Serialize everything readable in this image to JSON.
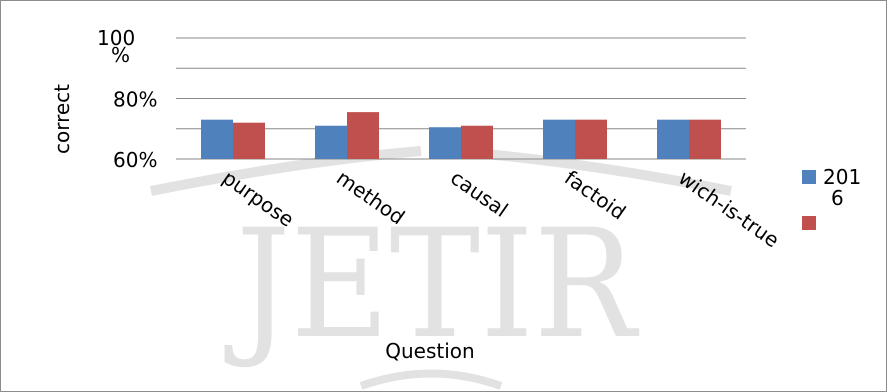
{
  "chart_data": {
    "type": "bar",
    "title": "",
    "xlabel": "Question",
    "ylabel": "correct",
    "categories": [
      "purpose",
      "method",
      "causal",
      "factoid",
      "wich-is-true"
    ],
    "ytick_labels": [
      "60%",
      "80%",
      "100\n%"
    ],
    "ylim": [
      60,
      100
    ],
    "grid": true,
    "legend_position": "right",
    "series": [
      {
        "name": "2016",
        "legend_label": "201\n6",
        "values": [
          73,
          71,
          70.5,
          73,
          73
        ],
        "color": "#4f81bd"
      },
      {
        "name": "",
        "values": [
          72,
          75.5,
          71,
          73,
          73
        ],
        "color": "#c0504d"
      }
    ]
  },
  "watermark": {
    "text": "JETIR",
    "color": "#e2e2e2"
  }
}
